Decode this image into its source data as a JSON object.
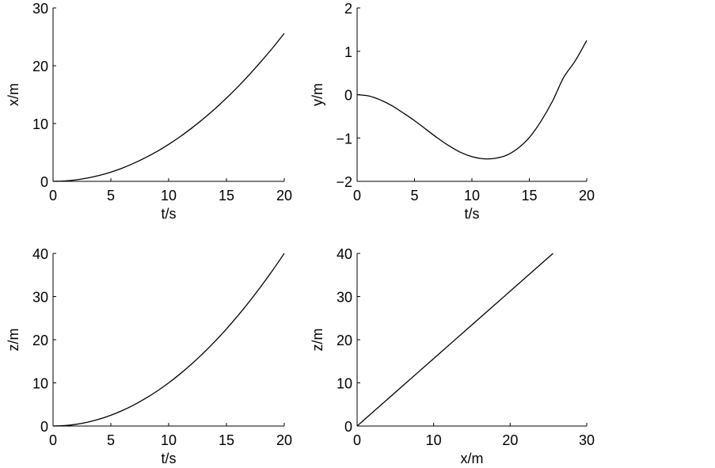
{
  "chart_data": [
    {
      "type": "line",
      "xlabel": "t/s",
      "ylabel": "x/m",
      "xlim": [
        0,
        20
      ],
      "ylim": [
        0,
        30
      ],
      "xticks": [
        0,
        5,
        10,
        15,
        20
      ],
      "yticks": [
        0,
        10,
        20,
        30
      ],
      "xtick_labels": [
        "0",
        "5",
        "10",
        "15",
        "20"
      ],
      "ytick_labels": [
        "0",
        "10",
        "20",
        "30"
      ],
      "grid": false,
      "series": [
        {
          "x": [
            0,
            1,
            2,
            3,
            4,
            5,
            6,
            7,
            8,
            9,
            10,
            11,
            12,
            13,
            14,
            15,
            16,
            17,
            18,
            19,
            20
          ],
          "y": [
            0,
            0.06,
            0.26,
            0.58,
            1.02,
            1.6,
            2.3,
            3.14,
            4.1,
            5.18,
            6.4,
            7.74,
            9.22,
            10.82,
            12.54,
            14.4,
            16.38,
            18.5,
            20.74,
            23.1,
            25.6
          ]
        }
      ]
    },
    {
      "type": "line",
      "xlabel": "t/s",
      "ylabel": "y/m",
      "xlim": [
        0,
        20
      ],
      "ylim": [
        -2,
        2
      ],
      "xticks": [
        0,
        5,
        10,
        15,
        20
      ],
      "yticks": [
        -2,
        -1,
        0,
        1,
        2
      ],
      "xtick_labels": [
        "0",
        "5",
        "10",
        "15",
        "20"
      ],
      "ytick_labels": [
        "−2",
        "−1",
        "0",
        "1",
        "2"
      ],
      "grid": false,
      "series": [
        {
          "x": [
            0,
            1,
            2,
            3,
            4,
            5,
            6,
            7,
            8,
            9,
            10,
            11,
            12,
            13,
            14,
            15,
            16,
            17,
            18,
            19,
            20
          ],
          "y": [
            0,
            -0.03,
            -0.12,
            -0.25,
            -0.42,
            -0.6,
            -0.8,
            -1.0,
            -1.18,
            -1.33,
            -1.43,
            -1.48,
            -1.47,
            -1.4,
            -1.24,
            -0.99,
            -0.62,
            -0.16,
            0.4,
            0.78,
            1.25
          ]
        }
      ]
    },
    {
      "type": "line",
      "xlabel": "t/s",
      "ylabel": "z/m",
      "xlim": [
        0,
        20
      ],
      "ylim": [
        0,
        40
      ],
      "xticks": [
        0,
        5,
        10,
        15,
        20
      ],
      "yticks": [
        0,
        10,
        20,
        30,
        40
      ],
      "xtick_labels": [
        "0",
        "5",
        "10",
        "15",
        "20"
      ],
      "ytick_labels": [
        "0",
        "10",
        "20",
        "30",
        "40"
      ],
      "grid": false,
      "series": [
        {
          "x": [
            0,
            1,
            2,
            3,
            4,
            5,
            6,
            7,
            8,
            9,
            10,
            11,
            12,
            13,
            14,
            15,
            16,
            17,
            18,
            19,
            20
          ],
          "y": [
            0,
            0.1,
            0.4,
            0.9,
            1.6,
            2.5,
            3.6,
            4.9,
            6.4,
            8.1,
            10,
            12.1,
            14.4,
            16.9,
            19.6,
            22.5,
            25.6,
            28.9,
            32.4,
            36.1,
            40
          ]
        }
      ]
    },
    {
      "type": "line",
      "xlabel": "x/m",
      "ylabel": "z/m",
      "xlim": [
        0,
        30
      ],
      "ylim": [
        0,
        40
      ],
      "xticks": [
        0,
        10,
        20,
        30
      ],
      "yticks": [
        0,
        10,
        20,
        30,
        40
      ],
      "xtick_labels": [
        "0",
        "10",
        "20",
        "30"
      ],
      "ytick_labels": [
        "0",
        "10",
        "20",
        "30",
        "40"
      ],
      "grid": false,
      "series": [
        {
          "x": [
            0,
            0.06,
            0.26,
            0.58,
            1.02,
            1.6,
            2.3,
            3.14,
            4.1,
            5.18,
            6.4,
            7.74,
            9.22,
            10.82,
            12.54,
            14.4,
            16.38,
            18.5,
            20.74,
            23.1,
            25.6
          ],
          "y": [
            0,
            0.1,
            0.4,
            0.9,
            1.6,
            2.5,
            3.6,
            4.9,
            6.4,
            8.1,
            10,
            12.1,
            14.4,
            16.9,
            19.6,
            22.5,
            25.6,
            28.9,
            32.4,
            36.1,
            40
          ]
        }
      ]
    }
  ]
}
